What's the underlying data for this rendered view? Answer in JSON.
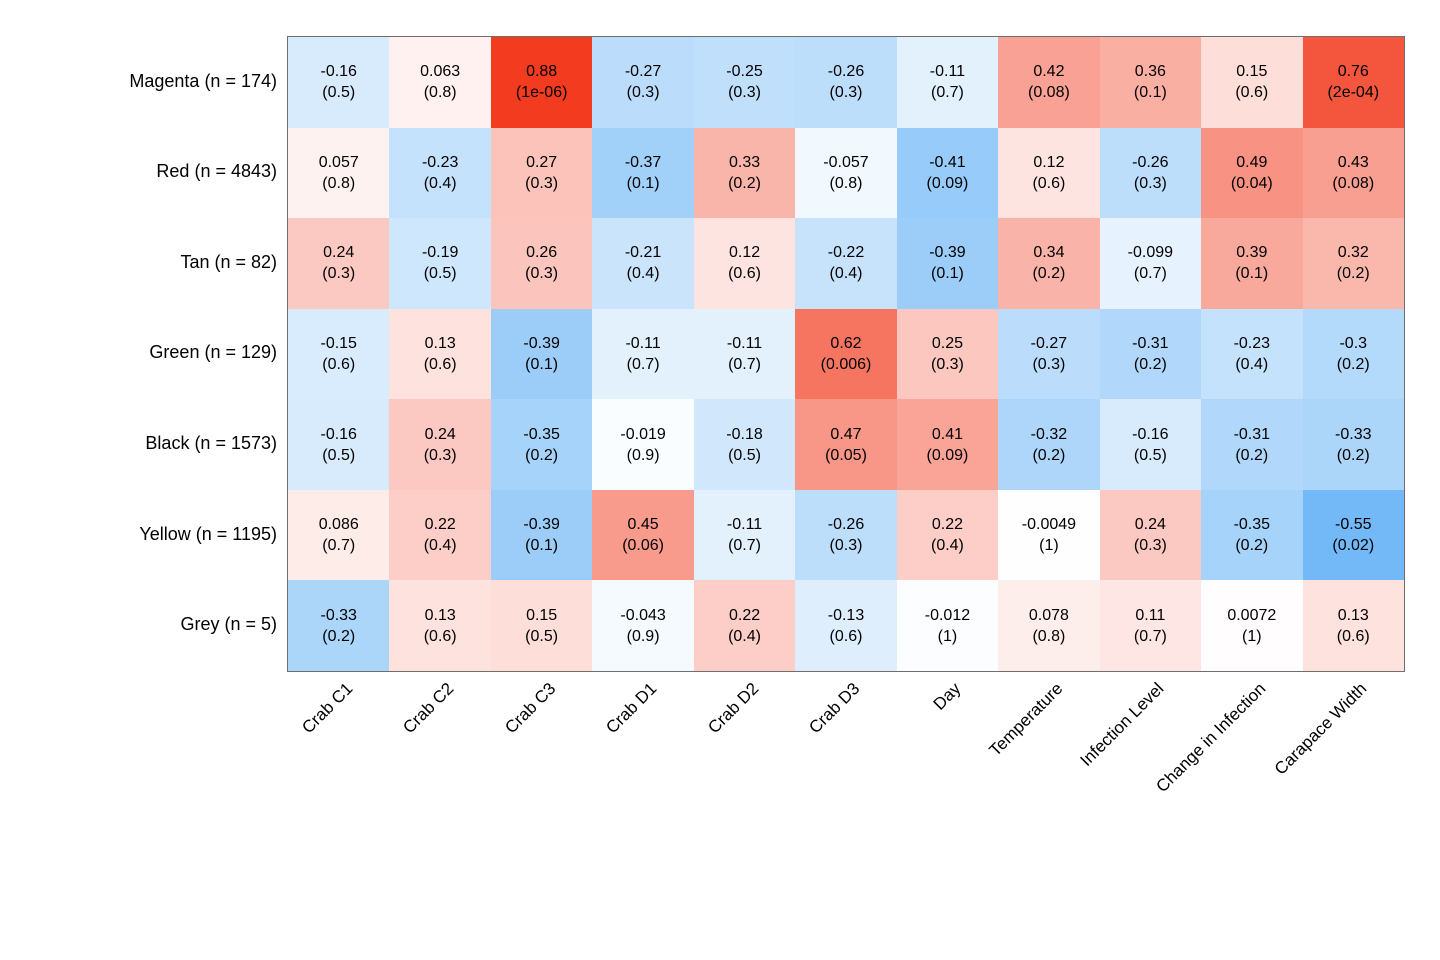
{
  "chart_data": {
    "type": "heatmap",
    "title": "",
    "xlabel": "",
    "ylabel": "",
    "legend": "none",
    "grid": "off",
    "cell_text_format": "r newline (p)",
    "colormap": {
      "zero_color": "#FFFFFF",
      "positive_max_color": "#F02000",
      "negative_max_color": "#0280F0",
      "domain": [
        -1,
        1
      ]
    },
    "columns": [
      "Crab C1",
      "Crab C2",
      "Crab C3",
      "Crab D1",
      "Crab D2",
      "Crab D3",
      "Day",
      "Temperature",
      "Infection Level",
      "Change in Infection",
      "Carapace Width"
    ],
    "rows": [
      {
        "label": "Magenta (n = 174)",
        "cells": [
          {
            "r": "-0.16",
            "p": "0.5"
          },
          {
            "r": "0.063",
            "p": "0.8"
          },
          {
            "r": "0.88",
            "p": "1e-06"
          },
          {
            "r": "-0.27",
            "p": "0.3"
          },
          {
            "r": "-0.25",
            "p": "0.3"
          },
          {
            "r": "-0.26",
            "p": "0.3"
          },
          {
            "r": "-0.11",
            "p": "0.7"
          },
          {
            "r": "0.42",
            "p": "0.08"
          },
          {
            "r": "0.36",
            "p": "0.1"
          },
          {
            "r": "0.15",
            "p": "0.6"
          },
          {
            "r": "0.76",
            "p": "2e-04"
          }
        ]
      },
      {
        "label": "Red (n = 4843)",
        "cells": [
          {
            "r": "0.057",
            "p": "0.8"
          },
          {
            "r": "-0.23",
            "p": "0.4"
          },
          {
            "r": "0.27",
            "p": "0.3"
          },
          {
            "r": "-0.37",
            "p": "0.1"
          },
          {
            "r": "0.33",
            "p": "0.2"
          },
          {
            "r": "-0.057",
            "p": "0.8"
          },
          {
            "r": "-0.41",
            "p": "0.09"
          },
          {
            "r": "0.12",
            "p": "0.6"
          },
          {
            "r": "-0.26",
            "p": "0.3"
          },
          {
            "r": "0.49",
            "p": "0.04"
          },
          {
            "r": "0.43",
            "p": "0.08"
          }
        ]
      },
      {
        "label": "Tan (n = 82)",
        "cells": [
          {
            "r": "0.24",
            "p": "0.3"
          },
          {
            "r": "-0.19",
            "p": "0.5"
          },
          {
            "r": "0.26",
            "p": "0.3"
          },
          {
            "r": "-0.21",
            "p": "0.4"
          },
          {
            "r": "0.12",
            "p": "0.6"
          },
          {
            "r": "-0.22",
            "p": "0.4"
          },
          {
            "r": "-0.39",
            "p": "0.1"
          },
          {
            "r": "0.34",
            "p": "0.2"
          },
          {
            "r": "-0.099",
            "p": "0.7"
          },
          {
            "r": "0.39",
            "p": "0.1"
          },
          {
            "r": "0.32",
            "p": "0.2"
          }
        ]
      },
      {
        "label": "Green (n = 129)",
        "cells": [
          {
            "r": "-0.15",
            "p": "0.6"
          },
          {
            "r": "0.13",
            "p": "0.6"
          },
          {
            "r": "-0.39",
            "p": "0.1"
          },
          {
            "r": "-0.11",
            "p": "0.7"
          },
          {
            "r": "-0.11",
            "p": "0.7"
          },
          {
            "r": "0.62",
            "p": "0.006"
          },
          {
            "r": "0.25",
            "p": "0.3"
          },
          {
            "r": "-0.27",
            "p": "0.3"
          },
          {
            "r": "-0.31",
            "p": "0.2"
          },
          {
            "r": "-0.23",
            "p": "0.4"
          },
          {
            "r": "-0.3",
            "p": "0.2"
          }
        ]
      },
      {
        "label": "Black (n = 1573)",
        "cells": [
          {
            "r": "-0.16",
            "p": "0.5"
          },
          {
            "r": "0.24",
            "p": "0.3"
          },
          {
            "r": "-0.35",
            "p": "0.2"
          },
          {
            "r": "-0.019",
            "p": "0.9"
          },
          {
            "r": "-0.18",
            "p": "0.5"
          },
          {
            "r": "0.47",
            "p": "0.05"
          },
          {
            "r": "0.41",
            "p": "0.09"
          },
          {
            "r": "-0.32",
            "p": "0.2"
          },
          {
            "r": "-0.16",
            "p": "0.5"
          },
          {
            "r": "-0.31",
            "p": "0.2"
          },
          {
            "r": "-0.33",
            "p": "0.2"
          }
        ]
      },
      {
        "label": "Yellow (n = 1195)",
        "cells": [
          {
            "r": "0.086",
            "p": "0.7"
          },
          {
            "r": "0.22",
            "p": "0.4"
          },
          {
            "r": "-0.39",
            "p": "0.1"
          },
          {
            "r": "0.45",
            "p": "0.06"
          },
          {
            "r": "-0.11",
            "p": "0.7"
          },
          {
            "r": "-0.26",
            "p": "0.3"
          },
          {
            "r": "0.22",
            "p": "0.4"
          },
          {
            "r": "-0.0049",
            "p": "1"
          },
          {
            "r": "0.24",
            "p": "0.3"
          },
          {
            "r": "-0.35",
            "p": "0.2"
          },
          {
            "r": "-0.55",
            "p": "0.02"
          }
        ]
      },
      {
        "label": "Grey (n = 5)",
        "cells": [
          {
            "r": "-0.33",
            "p": "0.2"
          },
          {
            "r": "0.13",
            "p": "0.6"
          },
          {
            "r": "0.15",
            "p": "0.5"
          },
          {
            "r": "-0.043",
            "p": "0.9"
          },
          {
            "r": "0.22",
            "p": "0.4"
          },
          {
            "r": "-0.13",
            "p": "0.6"
          },
          {
            "r": "-0.012",
            "p": "1"
          },
          {
            "r": "0.078",
            "p": "0.8"
          },
          {
            "r": "0.11",
            "p": "0.7"
          },
          {
            "r": "0.0072",
            "p": "1"
          },
          {
            "r": "0.13",
            "p": "0.6"
          }
        ]
      }
    ]
  },
  "colors": {
    "background": "#FFFFFF",
    "axis_border": "#6E6E6E",
    "text": "#000000"
  }
}
